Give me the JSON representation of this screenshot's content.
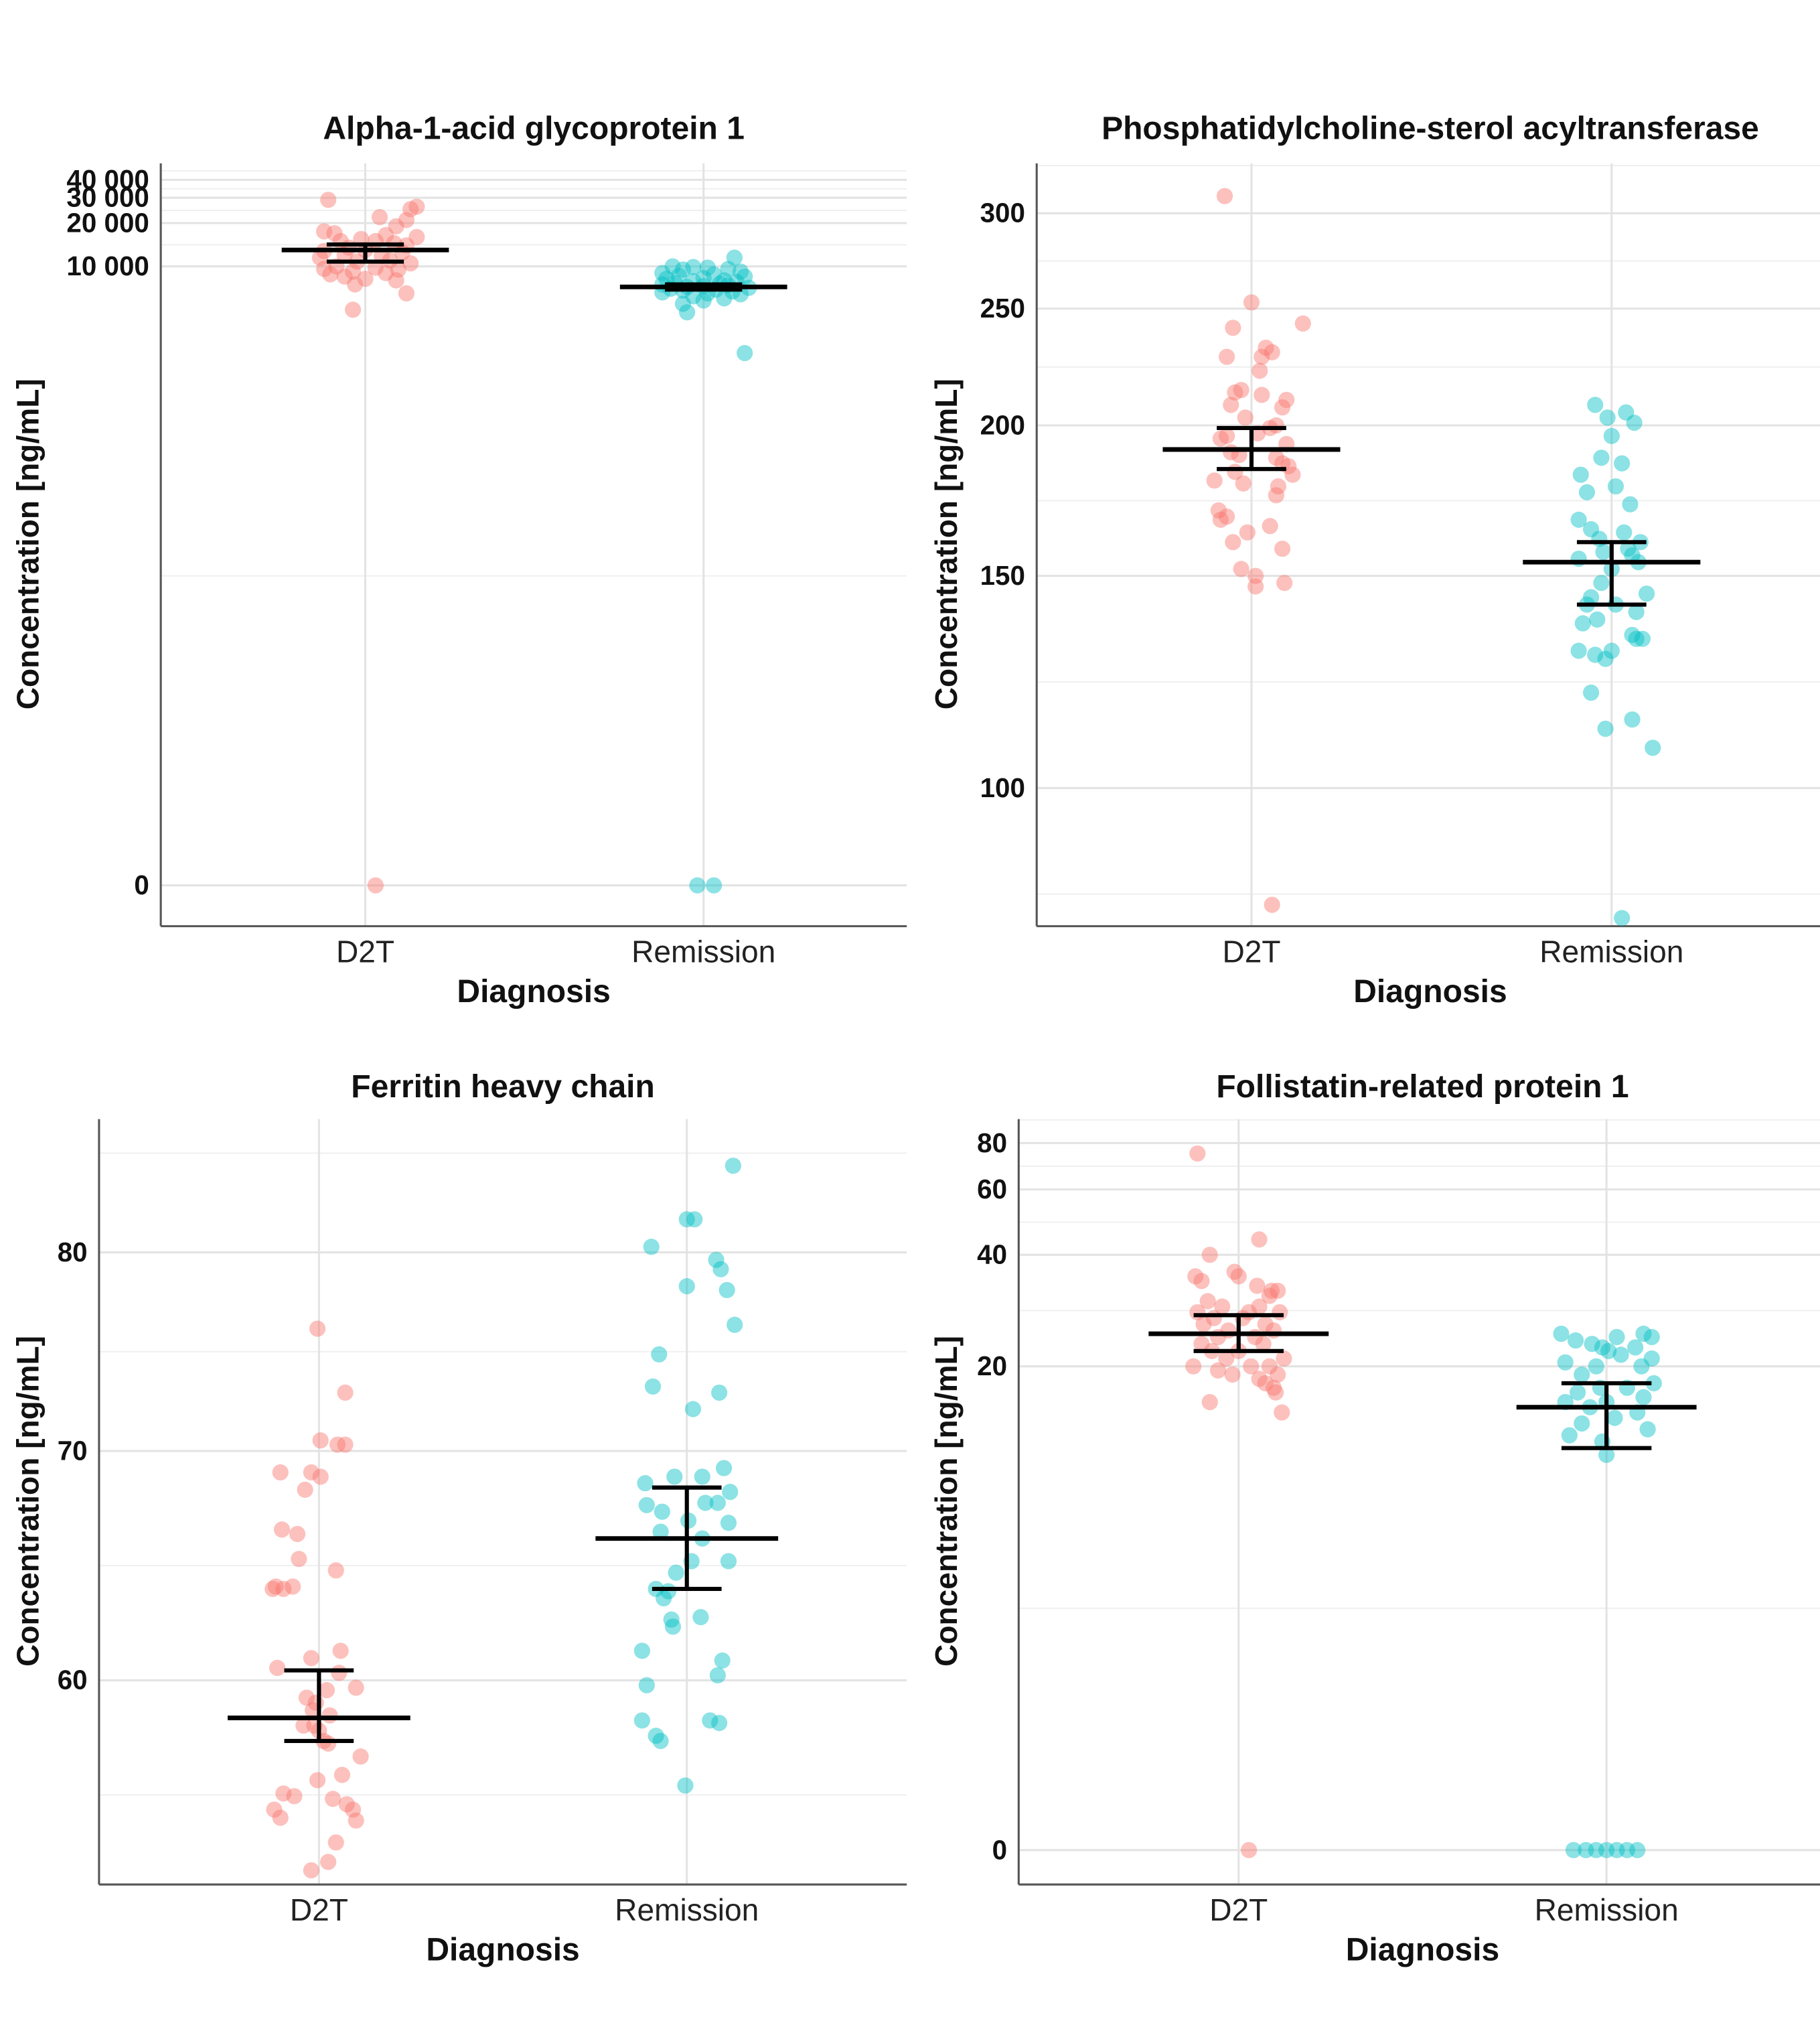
{
  "colors": {
    "D2T": "#F8766D",
    "Remission": "#00BFC4"
  },
  "chart_data": [
    {
      "type": "scatter",
      "title": "Alpha-1-acid glycoprotein 1",
      "xlabel": "Diagnosis",
      "ylabel": "Concentration [ng/mL]",
      "scale": "pseudo_log",
      "sigma": 1,
      "categories": [
        "D2T",
        "Remission"
      ],
      "yticks": [
        0,
        10000,
        20000,
        30000,
        40000
      ],
      "ytick_labels": [
        "0",
        "10 000",
        "20 000",
        "30 000",
        "40 000"
      ],
      "ylim": [
        -0.7,
        52000
      ],
      "series": [
        {
          "name": "D2T",
          "mean": 13000,
          "ci": [
            10800,
            14200
          ],
          "values": [
            29000,
            26000,
            25000,
            22000,
            21000,
            19000,
            17500,
            17000,
            16500,
            16000,
            15500,
            15000,
            15000,
            14500,
            14000,
            13500,
            13000,
            12800,
            12500,
            12000,
            11800,
            11500,
            11000,
            10800,
            10500,
            10000,
            9800,
            9600,
            9500,
            9200,
            9000,
            8800,
            8500,
            8200,
            8000,
            7500,
            6500,
            5000,
            0
          ],
          "jitter": [
            -0.18,
            0.25,
            0.22,
            0.07,
            0.2,
            0.15,
            -0.2,
            -0.15,
            0.1,
            0.25,
            -0.02,
            0.05,
            -0.12,
            0.14,
            0.2,
            -0.08,
            0.0,
            -0.2,
            0.18,
            -0.1,
            0.08,
            -0.22,
            0.12,
            -0.04,
            0.22,
            -0.14,
            0.05,
            -0.2,
            0.16,
            -0.06,
            0.1,
            -0.17,
            -0.1,
            0.0,
            0.15,
            -0.05,
            0.2,
            -0.06,
            0.05
          ]
        },
        {
          "name": "Remission",
          "mean": 7200,
          "ci": [
            6900,
            7500
          ],
          "values": [
            11500,
            10000,
            9900,
            9800,
            9600,
            9500,
            9200,
            9000,
            8800,
            8600,
            8500,
            8300,
            8200,
            8000,
            7900,
            7800,
            7700,
            7600,
            7500,
            7400,
            7300,
            7200,
            7100,
            7000,
            6900,
            6800,
            6700,
            6600,
            6500,
            6400,
            6200,
            6000,
            5800,
            5500,
            4800,
            2500,
            0,
            0
          ],
          "jitter": [
            0.15,
            -0.15,
            -0.05,
            0.02,
            0.12,
            -0.1,
            0.18,
            -0.2,
            0.05,
            -0.12,
            0.2,
            0.0,
            -0.18,
            0.1,
            -0.05,
            0.16,
            -0.14,
            0.08,
            -0.2,
            0.12,
            0.0,
            -0.08,
            0.22,
            -0.16,
            0.06,
            -0.1,
            0.14,
            -0.2,
            0.02,
            0.18,
            -0.05,
            0.1,
            0.0,
            -0.1,
            -0.08,
            0.2,
            -0.03,
            0.05
          ]
        }
      ]
    },
    {
      "type": "scatter",
      "title": "Phosphatidylcholine-sterol acyltransferase",
      "xlabel": "Diagnosis",
      "ylabel": "Concentration [ng/mL]",
      "scale": "log10",
      "categories": [
        "D2T",
        "Remission"
      ],
      "yticks": [
        100,
        150,
        200,
        250,
        300
      ],
      "ytick_labels": [
        "100",
        "150",
        "200",
        "250",
        "300"
      ],
      "ylim": [
        76.8,
        330
      ],
      "series": [
        {
          "name": "D2T",
          "mean": 191,
          "ci": [
            184,
            199
          ],
          "values": [
            310,
            253,
            243,
            241,
            232,
            230,
            228,
            228,
            222,
            214,
            213,
            212,
            210,
            208,
            207,
            203,
            200,
            199,
            197,
            196,
            195,
            193,
            190,
            189,
            188,
            186,
            185,
            183,
            182,
            180,
            179,
            178,
            175,
            170,
            168,
            167,
            165,
            163,
            160,
            158,
            152,
            150,
            148,
            147,
            80
          ],
          "jitter": [
            -0.13,
            0.0,
            0.25,
            -0.09,
            0.07,
            0.1,
            -0.12,
            0.05,
            0.04,
            -0.05,
            -0.08,
            0.05,
            0.17,
            -0.1,
            0.15,
            -0.03,
            0.12,
            0.09,
            0.03,
            -0.12,
            -0.15,
            0.17,
            -0.1,
            -0.06,
            0.12,
            0.15,
            0.18,
            -0.08,
            0.2,
            -0.18,
            -0.04,
            0.13,
            0.12,
            -0.16,
            -0.12,
            -0.15,
            0.09,
            -0.02,
            -0.09,
            0.15,
            -0.05,
            0.02,
            0.16,
            0.02,
            0.1
          ],
          "jitter_scale": 1
        },
        {
          "name": "Remission",
          "mean": 154,
          "ci": [
            142,
            160
          ],
          "values": [
            208,
            205,
            203,
            201,
            196,
            188,
            186,
            182,
            178,
            176,
            172,
            167,
            164,
            163,
            161,
            160,
            158,
            157,
            156,
            155,
            154,
            152,
            148,
            145,
            144,
            142,
            142,
            140,
            138,
            137,
            134,
            133,
            133,
            130,
            130,
            129,
            128,
            120,
            114,
            112,
            108,
            78
          ],
          "jitter": [
            -0.08,
            0.07,
            -0.02,
            0.11,
            0.0,
            -0.05,
            0.05,
            -0.15,
            0.02,
            -0.12,
            0.09,
            -0.16,
            -0.1,
            0.06,
            -0.06,
            0.14,
            0.08,
            -0.04,
            0.1,
            -0.16,
            0.13,
            0.0,
            -0.05,
            0.17,
            -0.1,
            -0.12,
            0.02,
            0.12,
            -0.07,
            -0.14,
            0.1,
            0.15,
            0.12,
            -0.16,
            0.0,
            -0.08,
            -0.03,
            -0.1,
            0.1,
            -0.03,
            0.2,
            0.05
          ]
        }
      ]
    },
    {
      "type": "scatter",
      "title": "Ferritin heavy chain",
      "xlabel": "Diagnosis",
      "ylabel": "Concentration [ng/mL]",
      "scale": "log10",
      "categories": [
        "D2T",
        "Remission"
      ],
      "yticks": [
        60,
        70,
        80
      ],
      "ytick_labels": [
        "60",
        "70",
        "80"
      ],
      "ylim": [
        52.3,
        87.5
      ],
      "series": [
        {
          "name": "D2T",
          "mean": 58.5,
          "ci": [
            57.6,
            60.4
          ],
          "values": [
            76.0,
            72.8,
            70.5,
            70.3,
            70.3,
            69.0,
            69.0,
            68.8,
            68.2,
            66.4,
            66.2,
            65.1,
            64.6,
            63.9,
            63.8,
            63.8,
            63.9,
            61.2,
            60.9,
            60.5,
            60.3,
            59.7,
            59.6,
            59.3,
            59.1,
            58.8,
            58.6,
            58.2,
            58.2,
            58.0,
            57.6,
            57.5,
            57.0,
            56.3,
            56.1,
            55.6,
            55.5,
            55.4,
            55.2,
            55.0,
            55.0,
            54.7,
            54.6,
            53.8,
            53.1,
            52.8
          ],
          "jitter": [
            -0.01,
            0.17,
            0.01,
            0.12,
            0.17,
            -0.25,
            -0.05,
            0.01,
            -0.09,
            -0.24,
            -0.14,
            -0.13,
            0.11,
            -0.28,
            -0.3,
            -0.23,
            -0.17,
            0.14,
            -0.05,
            -0.27,
            0.13,
            0.24,
            0.05,
            -0.08,
            -0.02,
            -0.04,
            0.07,
            -0.1,
            -0.03,
            0.0,
            0.03,
            0.06,
            0.27,
            0.15,
            -0.01,
            -0.23,
            -0.16,
            0.09,
            0.18,
            0.22,
            -0.29,
            -0.25,
            0.24,
            0.11,
            0.06,
            -0.05
          ],
          "jitter_scale": 1
        },
        {
          "name": "Remission",
          "mean": 66.0,
          "ci": [
            63.8,
            68.3
          ],
          "values": [
            84.8,
            81.8,
            81.8,
            80.3,
            79.6,
            79.1,
            78.2,
            78.0,
            76.2,
            74.7,
            73.1,
            72.8,
            72.0,
            69.2,
            68.8,
            68.8,
            68.5,
            68.1,
            67.6,
            67.6,
            67.5,
            67.2,
            66.8,
            66.7,
            66.3,
            66.0,
            65.0,
            65.0,
            64.5,
            63.8,
            63.7,
            63.4,
            62.6,
            62.5,
            62.2,
            61.2,
            60.8,
            60.2,
            59.8,
            58.4,
            58.4,
            58.3,
            57.8,
            57.6,
            55.9
          ],
          "jitter": [
            0.3,
            0.0,
            0.05,
            -0.23,
            0.19,
            0.22,
            0.0,
            0.26,
            0.31,
            -0.18,
            -0.22,
            0.21,
            0.04,
            0.24,
            0.1,
            -0.08,
            -0.27,
            0.28,
            0.12,
            0.2,
            -0.26,
            -0.16,
            0.01,
            0.27,
            -0.17,
            0.1,
            0.03,
            0.27,
            -0.07,
            -0.2,
            -0.12,
            -0.15,
            0.09,
            -0.1,
            -0.09,
            -0.29,
            0.23,
            0.2,
            -0.26,
            -0.29,
            0.15,
            0.21,
            -0.2,
            -0.17,
            -0.01
          ]
        }
      ]
    },
    {
      "type": "scatter",
      "title": "Follistatin-related protein 1",
      "xlabel": "Diagnosis",
      "ylabel": "Concentration [ng/mL]",
      "scale": "pseudo_log",
      "sigma": 2,
      "categories": [
        "D2T",
        "Remission"
      ],
      "yticks": [
        0,
        20,
        40,
        60,
        80
      ],
      "ytick_labels": [
        "0",
        "20",
        "40",
        "60",
        "80"
      ],
      "ylim": [
        -0.43,
        92.8
      ],
      "series": [
        {
          "name": "D2T",
          "mean": 24.5,
          "ci": [
            22.0,
            27.5
          ],
          "values": [
            75,
            44,
            40,
            36,
            35,
            35,
            34,
            33,
            32,
            32,
            31,
            30,
            29,
            29,
            28,
            28,
            28,
            27,
            27,
            26,
            26,
            25,
            25,
            24,
            24,
            23,
            23,
            22,
            22,
            21,
            21,
            20,
            20,
            20,
            19.5,
            19,
            19,
            18.5,
            18,
            17.5,
            17,
            16,
            15,
            0
          ],
          "jitter": [
            -0.2,
            0.1,
            -0.14,
            -0.02,
            0.0,
            -0.21,
            -0.18,
            0.09,
            0.19,
            0.16,
            0.15,
            -0.15,
            -0.08,
            0.1,
            -0.2,
            0.05,
            0.2,
            -0.12,
            0.02,
            0.13,
            -0.17,
            -0.05,
            0.17,
            0.08,
            -0.1,
            -0.18,
            0.12,
            0.0,
            -0.13,
            0.22,
            -0.06,
            -0.22,
            0.06,
            0.15,
            -0.1,
            -0.03,
            0.19,
            0.1,
            0.13,
            0.17,
            0.18,
            -0.14,
            0.21,
            0.05
          ]
        },
        {
          "name": "Remission",
          "mean": 15.5,
          "ci": [
            12.0,
            18.0
          ],
          "values": [
            24.5,
            24.5,
            24.0,
            24.0,
            23.5,
            23.0,
            22.5,
            22.5,
            22.0,
            21.5,
            21.0,
            20.5,
            20.0,
            20.0,
            19.0,
            18.0,
            17.5,
            17.5,
            17.0,
            16.5,
            16.0,
            16.0,
            15.5,
            15.0,
            14.5,
            14.0,
            13.5,
            13.0,
            12.5,
            11.5,
            0,
            0,
            0,
            0,
            0,
            0,
            0
          ],
          "jitter": [
            -0.22,
            0.18,
            0.05,
            0.22,
            -0.15,
            -0.07,
            0.14,
            -0.02,
            0.01,
            0.07,
            0.22,
            -0.2,
            -0.05,
            0.17,
            -0.12,
            0.23,
            -0.03,
            0.1,
            -0.14,
            0.18,
            -0.2,
            0.0,
            -0.08,
            0.15,
            0.04,
            -0.12,
            0.2,
            -0.18,
            -0.02,
            0.0,
            -0.16,
            -0.1,
            -0.05,
            0.0,
            0.05,
            0.1,
            0.15
          ]
        }
      ]
    }
  ]
}
